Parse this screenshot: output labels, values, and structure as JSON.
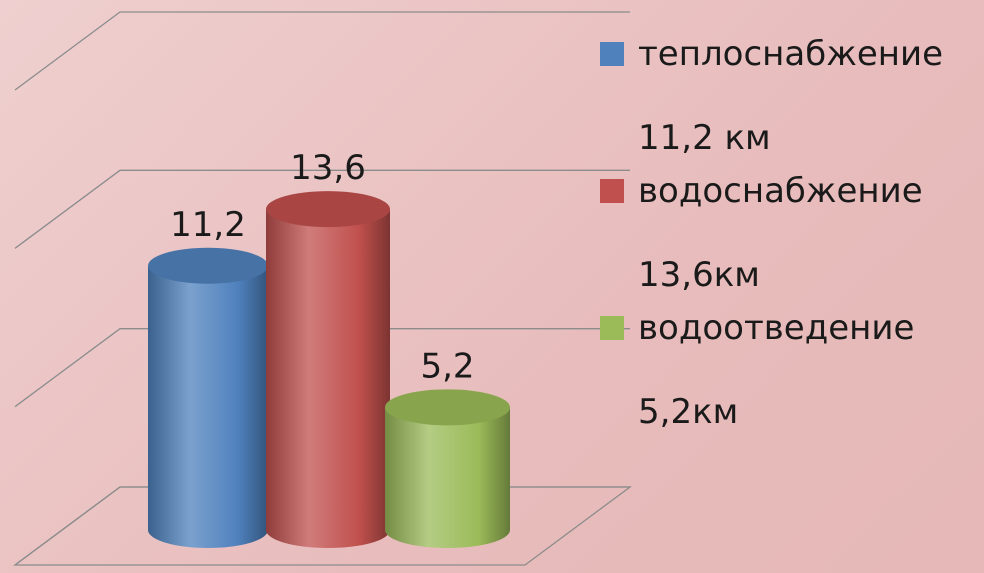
{
  "chart_data": {
    "type": "bar",
    "categories": [
      null
    ],
    "series": [
      {
        "name": "теплоснабжение 11,2 км",
        "color": "#4f81bd",
        "values": [
          11.2
        ],
        "value_labels": [
          "11,2"
        ]
      },
      {
        "name": "водоснабжение 13,6км",
        "color": "#c0504d",
        "values": [
          13.6
        ],
        "value_labels": [
          "13,6"
        ]
      },
      {
        "name": "водоотведение 5,2км",
        "color": "#9bbb59",
        "values": [
          5.2
        ],
        "value_labels": [
          "5,2"
        ]
      }
    ],
    "ylim": [
      0,
      15
    ],
    "yticks": [
      0,
      5,
      10,
      15
    ],
    "grid": true,
    "legend": "right"
  }
}
